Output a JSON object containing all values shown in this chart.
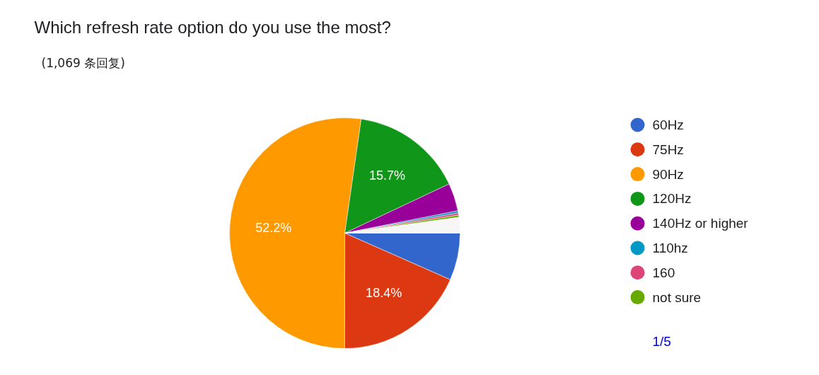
{
  "chart_data": {
    "type": "pie",
    "title": "Which refresh rate option do you use the most?",
    "subtitle": "(1,069 条回复)",
    "categories": [
      "60Hz",
      "75Hz",
      "90Hz",
      "120Hz",
      "140Hz or higher",
      "110hz",
      "160",
      "not sure",
      null
    ],
    "values": [
      6.6,
      18.4,
      52.2,
      15.7,
      3.9,
      0.3,
      0.3,
      0.3,
      2.2
    ],
    "colors": [
      "#3366cc",
      "#dc3912",
      "#ff9900",
      "#109618",
      "#990099",
      "#0099c6",
      "#dd4477",
      "#66aa00",
      "#f6f6f6"
    ],
    "value_labels": [
      null,
      "18.4%",
      "52.2%",
      "15.7%",
      null,
      null,
      null,
      null,
      null
    ],
    "legend": "right",
    "annotations": [
      "1/5"
    ]
  }
}
